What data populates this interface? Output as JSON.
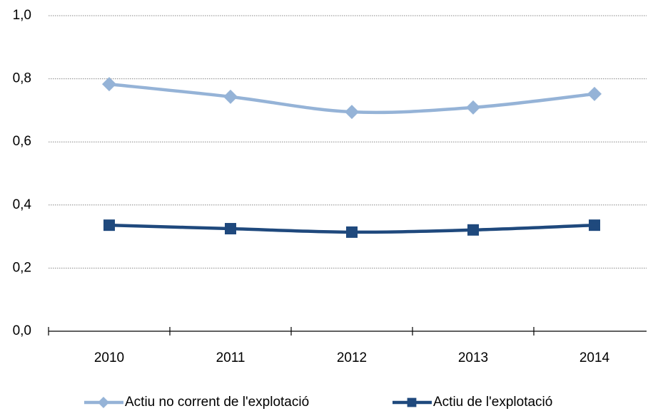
{
  "chart_data": {
    "type": "line",
    "categories": [
      "2010",
      "2011",
      "2012",
      "2013",
      "2014"
    ],
    "series": [
      {
        "name": "Actiu no corrent de l'explotació",
        "color": "#95b3d7",
        "marker": "diamond",
        "values": [
          0.783,
          0.743,
          0.695,
          0.709,
          0.752
        ]
      },
      {
        "name": "Actiu de l'explotació",
        "color": "#1f497d",
        "marker": "square",
        "values": [
          0.336,
          0.325,
          0.314,
          0.321,
          0.336
        ]
      }
    ],
    "ylim": [
      0,
      1
    ],
    "yticks": [
      {
        "value": 0,
        "label": "0,0"
      },
      {
        "value": 0.2,
        "label": "0,2"
      },
      {
        "value": 0.4,
        "label": "0,4"
      },
      {
        "value": 0.6,
        "label": "0,6"
      },
      {
        "value": 0.8,
        "label": "0,8"
      },
      {
        "value": 1,
        "label": "1,0"
      }
    ],
    "grid": true,
    "legend": "bottom"
  }
}
